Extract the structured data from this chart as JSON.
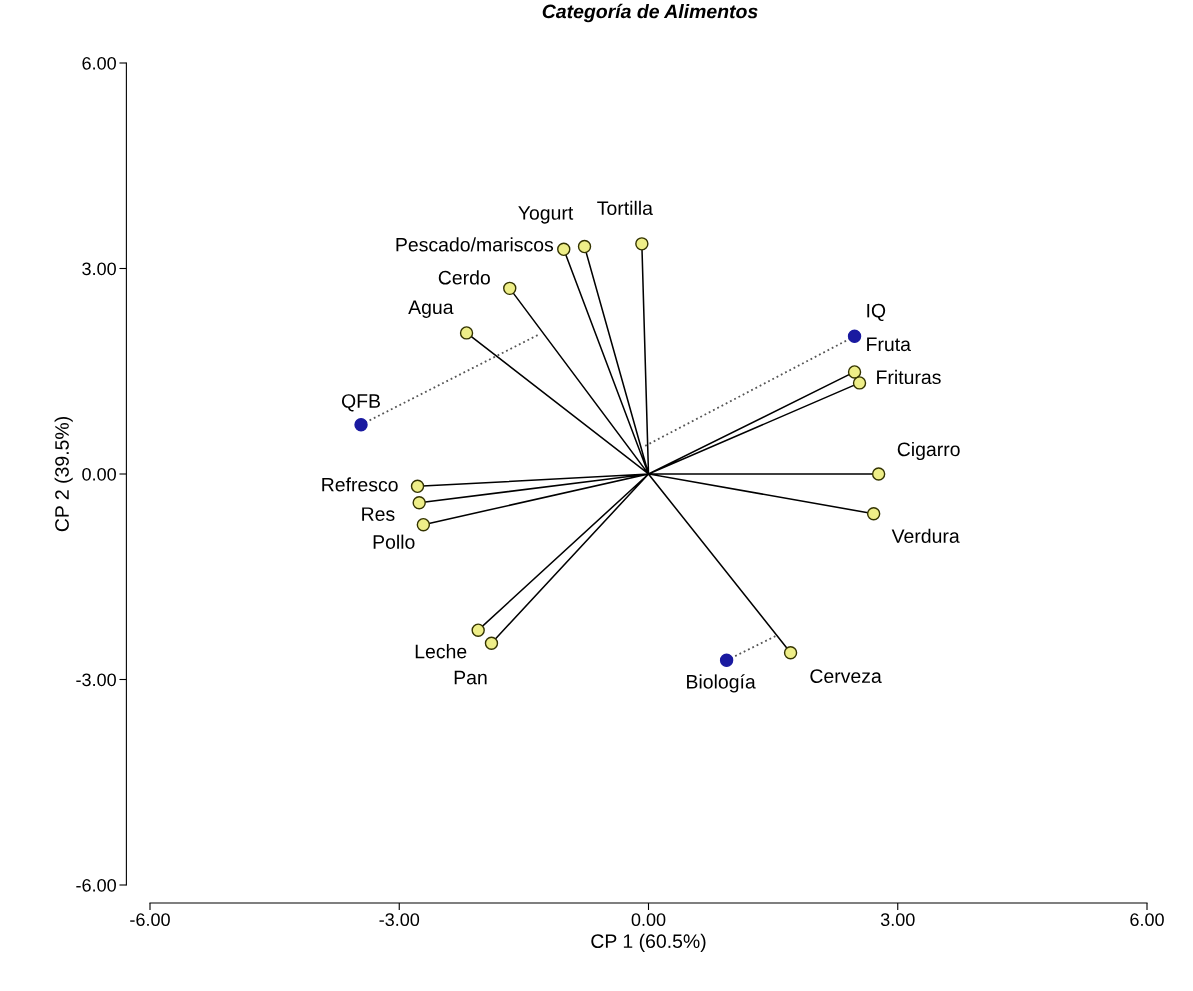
{
  "chart_data": {
    "type": "scatter",
    "title": "Categoría de Alimentos",
    "xlabel": "CP 1 (60.5%)",
    "ylabel": "CP 2 (39.5%)",
    "xlim": [
      -6,
      6
    ],
    "ylim": [
      -6,
      6
    ],
    "xticks": [
      {
        "value": -6,
        "label": "-6.00"
      },
      {
        "value": -3,
        "label": "-3.00"
      },
      {
        "value": 0,
        "label": "0.00"
      },
      {
        "value": 3,
        "label": "3.00"
      },
      {
        "value": 6,
        "label": "6.00"
      }
    ],
    "yticks": [
      {
        "value": -6,
        "label": "-6.00"
      },
      {
        "value": -3,
        "label": "-3.00"
      },
      {
        "value": 0,
        "label": "0.00"
      },
      {
        "value": 3,
        "label": "3.00"
      },
      {
        "value": 6,
        "label": "6.00"
      }
    ],
    "grid": false,
    "legend": false,
    "series": [
      {
        "type": "line",
        "color": "#000000",
        "line_style": "solid",
        "marker": "none",
        "x": [
          0,
          -1.02,
          null,
          0,
          -0.77,
          null,
          0,
          -0.08,
          null,
          0,
          -1.67,
          null,
          0,
          -2.19,
          null,
          0,
          -2.78,
          null,
          0,
          -2.76,
          null,
          0,
          -2.71,
          null,
          0,
          2.48,
          null,
          0,
          2.54,
          null,
          0,
          2.77,
          null,
          0,
          2.71,
          null,
          0,
          1.71,
          null,
          0,
          -2.05,
          null,
          0,
          -1.89
        ],
        "values": [
          0,
          3.28,
          null,
          0,
          3.32,
          null,
          0,
          3.36,
          null,
          0,
          2.71,
          null,
          0,
          2.06,
          null,
          0,
          -0.18,
          null,
          0,
          -0.42,
          null,
          0,
          -0.74,
          null,
          0,
          1.49,
          null,
          0,
          1.33,
          null,
          0,
          0.0,
          null,
          0,
          -0.58,
          null,
          0,
          -2.61,
          null,
          0,
          -2.28,
          null,
          0,
          -2.47
        ]
      },
      {
        "type": "line",
        "color": "#555555",
        "line_style": "dotted",
        "marker": "none",
        "x": [
          -3.46,
          -1.33,
          null,
          2.48,
          -0.04,
          null,
          0.94,
          1.54
        ],
        "values": [
          0.72,
          2.03,
          null,
          2.01,
          0.41,
          null,
          -2.72,
          -2.36
        ]
      },
      {
        "color": "#eeee88",
        "marker": "circle",
        "x": [
          -1.02,
          -0.77,
          -0.08,
          -1.67,
          -2.19,
          -2.78,
          -2.76,
          -2.71,
          2.48,
          2.54,
          2.77,
          2.71,
          1.71,
          -2.05,
          -1.89
        ],
        "values": [
          3.28,
          3.32,
          3.36,
          2.71,
          2.06,
          -0.18,
          -0.42,
          -0.74,
          1.49,
          1.33,
          0.0,
          -0.58,
          -2.61,
          -2.28,
          -2.47
        ]
      },
      {
        "color": "#1a1aa0",
        "marker": "circle",
        "x": [
          -3.46,
          2.48,
          0.94
        ],
        "values": [
          0.72,
          2.01,
          -2.72
        ]
      }
    ],
    "annotations": [
      {
        "text": "Pescado/mariscos",
        "x": -1.02,
        "y": 3.28
      },
      {
        "text": "Yogurt",
        "x": -0.77,
        "y": 3.32
      },
      {
        "text": "Tortilla",
        "x": -0.08,
        "y": 3.36
      },
      {
        "text": "Cerdo",
        "x": -1.67,
        "y": 2.71
      },
      {
        "text": "Agua",
        "x": -2.19,
        "y": 2.06
      },
      {
        "text": "QFB",
        "x": -3.46,
        "y": 0.72
      },
      {
        "text": "Refresco",
        "x": -2.78,
        "y": -0.18
      },
      {
        "text": "Res",
        "x": -2.76,
        "y": -0.42
      },
      {
        "text": "Pollo",
        "x": -2.71,
        "y": -0.74
      },
      {
        "text": "IQ",
        "x": 2.48,
        "y": 2.01
      },
      {
        "text": "Fruta",
        "x": 2.48,
        "y": 1.49
      },
      {
        "text": "Frituras",
        "x": 2.54,
        "y": 1.33
      },
      {
        "text": "Cigarro",
        "x": 2.77,
        "y": 0.0
      },
      {
        "text": "Verdura",
        "x": 2.71,
        "y": -0.58
      },
      {
        "text": "Cerveza",
        "x": 1.71,
        "y": -2.61
      },
      {
        "text": "Biología",
        "x": 0.94,
        "y": -2.72
      },
      {
        "text": "Leche",
        "x": -2.05,
        "y": -2.28
      },
      {
        "text": "Pan",
        "x": -1.89,
        "y": -2.47
      }
    ]
  }
}
